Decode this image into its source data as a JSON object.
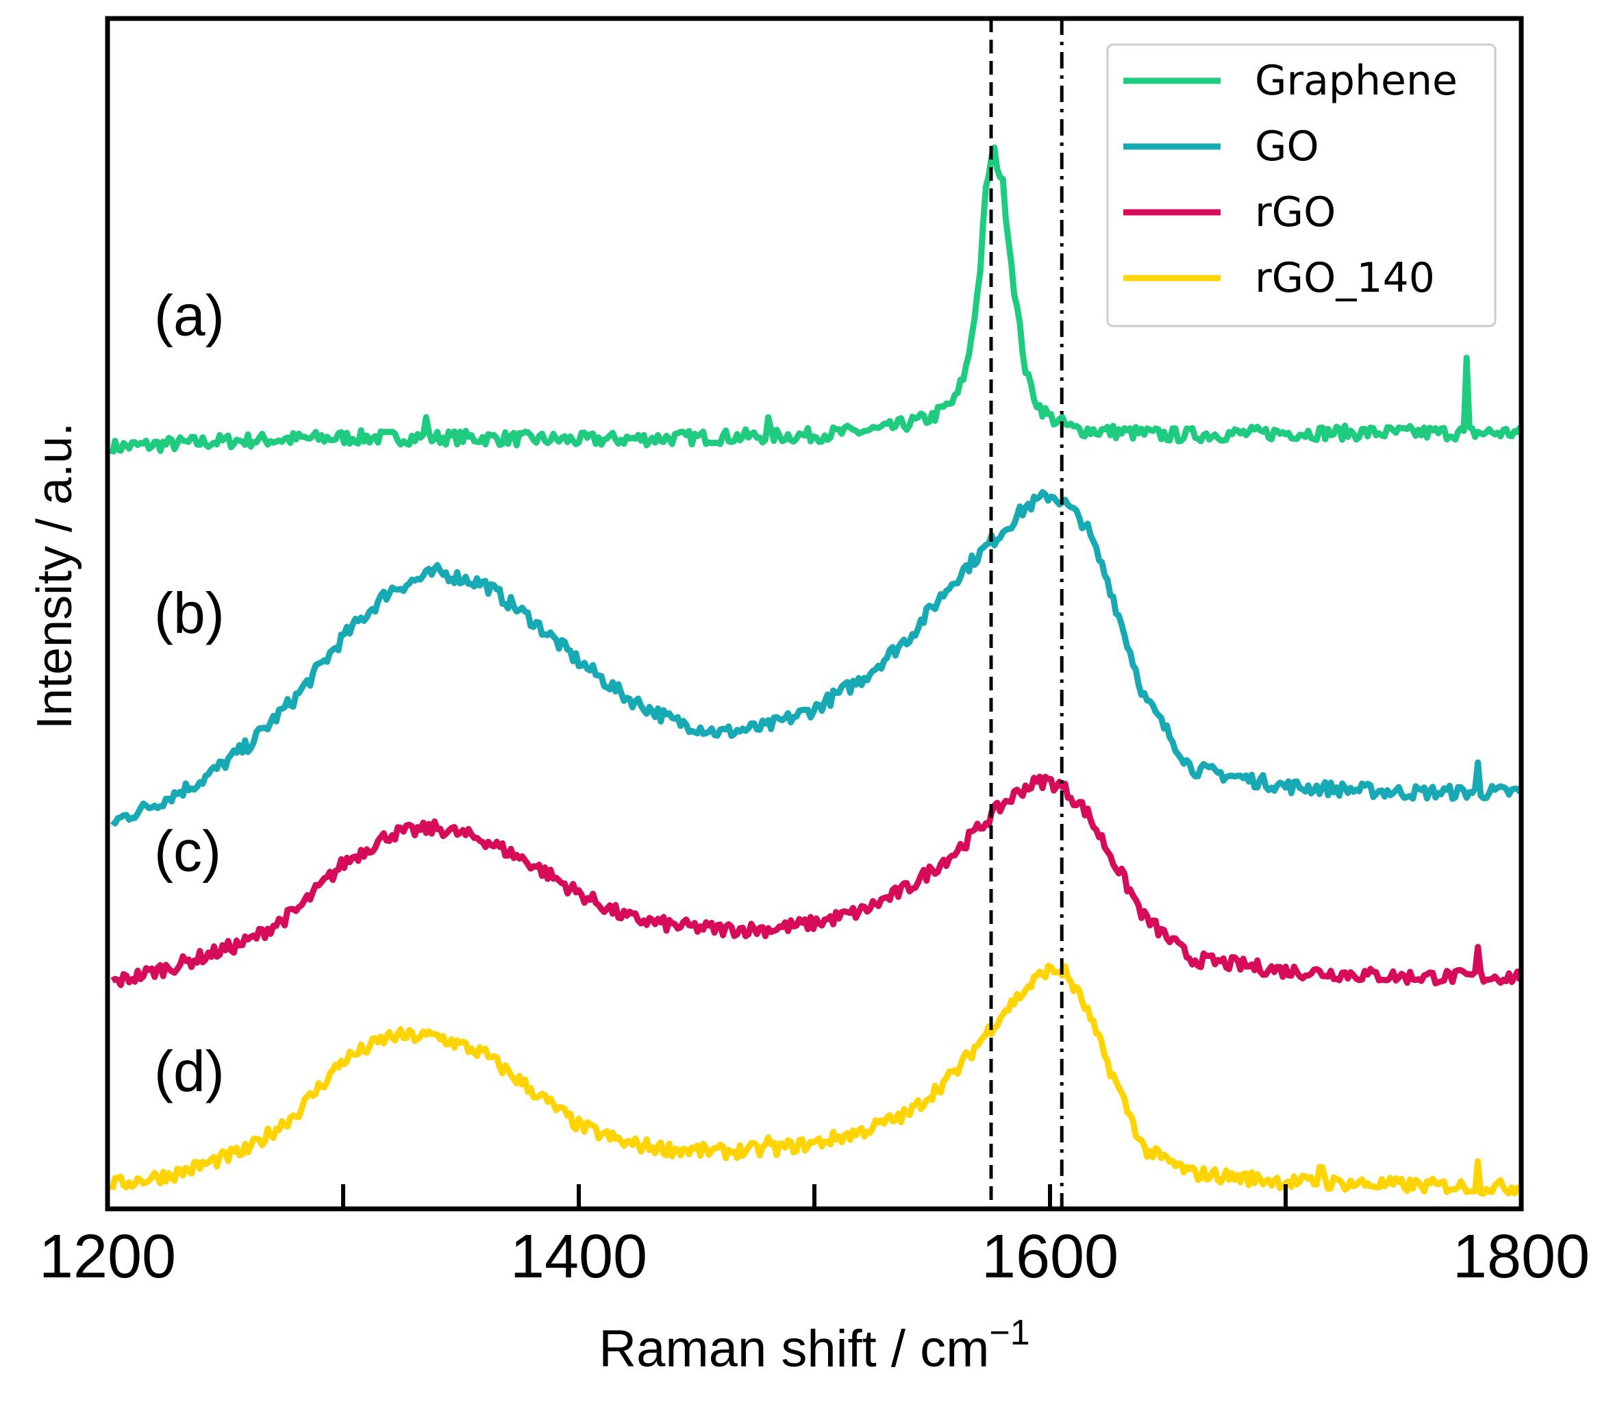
{
  "chart_data": {
    "type": "line",
    "title": "",
    "xlabel": "Raman shift / cm",
    "xlabel_superscript": "−1",
    "ylabel": "Intensity / a.u.",
    "xlim": [
      1200,
      1800
    ],
    "ylim": [
      0,
      1
    ],
    "x_ticks_major": [
      1200,
      1400,
      1600,
      1800
    ],
    "x_tick_labels": [
      "1200",
      "1400",
      "1600",
      "1800"
    ],
    "x_ticks_minor": [
      1300,
      1500,
      1700
    ],
    "y_ticks": [],
    "grid": false,
    "legend_position": "top-right",
    "reference_lines": [
      {
        "x": 1575,
        "style": "dashed",
        "color": "#000000"
      },
      {
        "x": 1605,
        "style": "dash-dot",
        "color": "#000000"
      }
    ],
    "annotations": [
      {
        "text": "(a)",
        "series": "Graphene"
      },
      {
        "text": "(b)",
        "series": "GO"
      },
      {
        "text": "(c)",
        "series": "rGO"
      },
      {
        "text": "(d)",
        "series": "rGO_140"
      }
    ],
    "series": [
      {
        "name": "Graphene",
        "color": "#1ecb7f",
        "x": [
          1202,
          1250,
          1300,
          1350,
          1400,
          1450,
          1500,
          1530,
          1550,
          1560,
          1565,
          1570,
          1573,
          1576,
          1580,
          1585,
          1590,
          1595,
          1600,
          1610,
          1650,
          1700,
          1750,
          1800
        ],
        "y": [
          0.64,
          0.645,
          0.648,
          0.648,
          0.646,
          0.648,
          0.65,
          0.655,
          0.665,
          0.68,
          0.71,
          0.78,
          0.86,
          0.89,
          0.86,
          0.77,
          0.7,
          0.675,
          0.665,
          0.655,
          0.65,
          0.652,
          0.652,
          0.652
        ],
        "spikes": [
          {
            "x": 1335,
            "y": 0.665
          },
          {
            "x": 1480,
            "y": 0.665
          },
          {
            "x": 1777,
            "y": 0.715
          }
        ]
      },
      {
        "name": "GO",
        "color": "#17a9b4",
        "x": [
          1202,
          1220,
          1240,
          1260,
          1280,
          1300,
          1320,
          1340,
          1360,
          1380,
          1400,
          1420,
          1440,
          1460,
          1480,
          1500,
          1520,
          1540,
          1560,
          1580,
          1590,
          1600,
          1605,
          1615,
          1625,
          1640,
          1660,
          1700,
          1750,
          1800
        ],
        "y": [
          0.325,
          0.34,
          0.36,
          0.39,
          0.43,
          0.48,
          0.52,
          0.535,
          0.525,
          0.495,
          0.46,
          0.43,
          0.41,
          0.4,
          0.405,
          0.42,
          0.445,
          0.48,
          0.53,
          0.57,
          0.59,
          0.6,
          0.595,
          0.575,
          0.525,
          0.43,
          0.37,
          0.355,
          0.35,
          0.35
        ],
        "spikes": [
          {
            "x": 1782,
            "y": 0.375
          }
        ]
      },
      {
        "name": "rGO",
        "color": "#d60b59",
        "x": [
          1202,
          1230,
          1260,
          1280,
          1300,
          1320,
          1340,
          1360,
          1380,
          1400,
          1420,
          1440,
          1460,
          1480,
          1500,
          1520,
          1540,
          1560,
          1570,
          1580,
          1590,
          1598,
          1605,
          1615,
          1625,
          1640,
          1660,
          1700,
          1750,
          1800
        ],
        "y": [
          0.19,
          0.205,
          0.225,
          0.25,
          0.29,
          0.315,
          0.32,
          0.31,
          0.29,
          0.265,
          0.245,
          0.238,
          0.235,
          0.235,
          0.24,
          0.25,
          0.27,
          0.3,
          0.32,
          0.34,
          0.355,
          0.36,
          0.355,
          0.335,
          0.3,
          0.245,
          0.21,
          0.2,
          0.195,
          0.195
        ],
        "spikes": [
          {
            "x": 1782,
            "y": 0.22
          }
        ]
      },
      {
        "name": "rGO_140",
        "color": "#ffd400",
        "x": [
          1202,
          1230,
          1260,
          1280,
          1300,
          1320,
          1340,
          1360,
          1380,
          1400,
          1420,
          1440,
          1460,
          1480,
          1500,
          1520,
          1540,
          1560,
          1570,
          1580,
          1590,
          1598,
          1606,
          1615,
          1625,
          1640,
          1660,
          1700,
          1750,
          1800
        ],
        "y": [
          0.02,
          0.03,
          0.05,
          0.08,
          0.125,
          0.145,
          0.145,
          0.13,
          0.1,
          0.07,
          0.055,
          0.05,
          0.048,
          0.05,
          0.055,
          0.065,
          0.08,
          0.115,
          0.14,
          0.165,
          0.185,
          0.2,
          0.2,
          0.17,
          0.12,
          0.05,
          0.03,
          0.023,
          0.02,
          0.018
        ],
        "spikes": [
          {
            "x": 1480,
            "y": 0.06
          },
          {
            "x": 1715,
            "y": 0.035
          },
          {
            "x": 1782,
            "y": 0.04
          }
        ]
      }
    ]
  }
}
